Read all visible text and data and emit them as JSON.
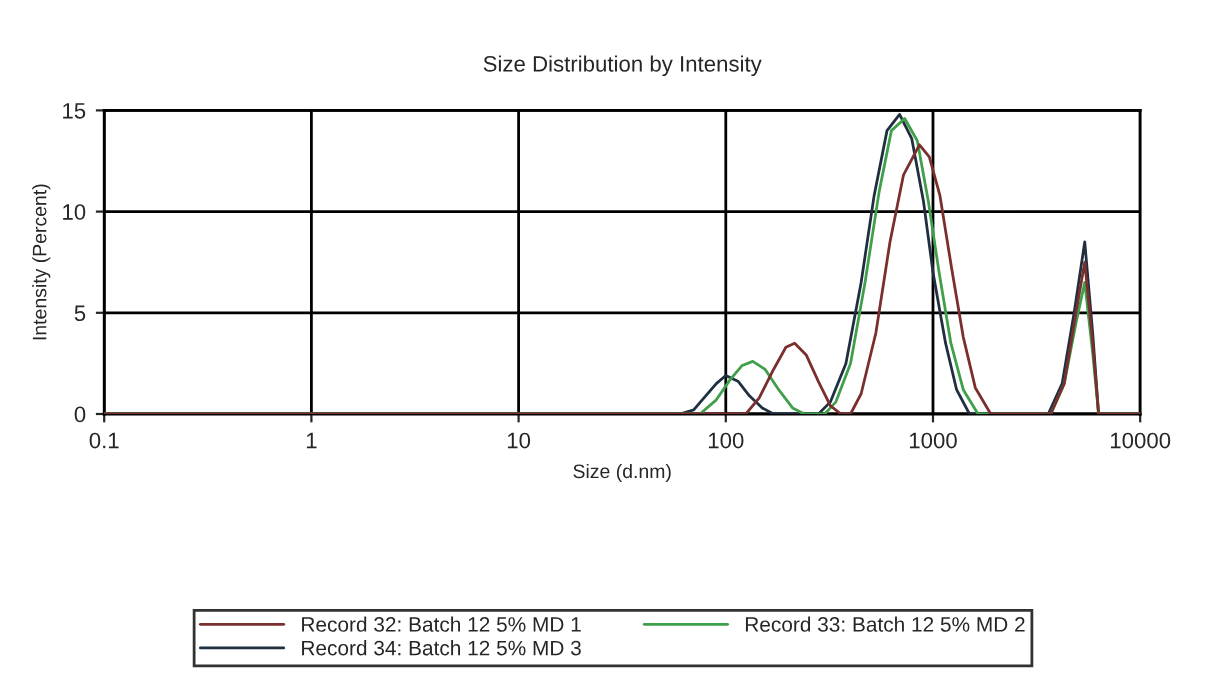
{
  "chart_data": {
    "type": "line",
    "title": "Size Distribution by Intensity",
    "xlabel": "Size (d.nm)",
    "ylabel": "Intensity (Percent)",
    "log": "x",
    "xlim": [
      0.1,
      10000
    ],
    "xticks": [
      {
        "value": 0.1,
        "label": "0.1"
      },
      1,
      10,
      100,
      1000,
      10000
    ],
    "ylim": [
      0,
      15
    ],
    "yticks": [
      0,
      5,
      10,
      15
    ],
    "grid": true,
    "legend": "bottom",
    "marker": "none",
    "line_style": "solid",
    "series": [
      {
        "name": "Record 32: Batch 12 5% MD 1",
        "color": "#7a2e2e",
        "x": [
          0.1,
          125,
          145,
          170,
          195,
          215,
          245,
          280,
          320,
          360,
          400,
          450,
          530,
          620,
          720,
          860,
          960,
          1080,
          1230,
          1400,
          1600,
          1900,
          3700,
          4300,
          4900,
          5400,
          5900,
          6300,
          10000
        ],
        "values": [
          0,
          0,
          0.8,
          2.2,
          3.3,
          3.5,
          2.9,
          1.6,
          0.4,
          0,
          0,
          1.0,
          4.0,
          8.5,
          11.8,
          13.3,
          12.7,
          10.8,
          7.2,
          3.8,
          1.3,
          0,
          0,
          1.5,
          5,
          7.5,
          3.5,
          0,
          0
        ]
      },
      {
        "name": "Record 33: Batch 12 5% MD 2",
        "color": "#3f9f4a",
        "x": [
          0.1,
          75,
          90,
          105,
          120,
          135,
          155,
          180,
          210,
          240,
          300,
          340,
          400,
          470,
          550,
          630,
          730,
          840,
          950,
          1070,
          1220,
          1400,
          1650,
          3700,
          4300,
          4900,
          5400,
          5900,
          6300,
          10000
        ],
        "values": [
          0,
          0,
          0.7,
          1.7,
          2.4,
          2.6,
          2.2,
          1.2,
          0.3,
          0,
          0,
          0.6,
          2.5,
          6.5,
          11,
          14,
          14.6,
          13.5,
          10.5,
          7,
          3.5,
          1.2,
          0,
          0,
          1.5,
          4.5,
          6.5,
          3,
          0,
          0
        ]
      },
      {
        "name": "Record 34: Batch 12 5% MD 3",
        "color": "#1f2f3f",
        "x": [
          0.1,
          60,
          70,
          80,
          90,
          100,
          115,
          130,
          150,
          170,
          280,
          320,
          380,
          450,
          520,
          600,
          690,
          790,
          900,
          1000,
          1150,
          1300,
          1500,
          3600,
          4200,
          4800,
          5400,
          5900,
          6300,
          10000
        ],
        "values": [
          0,
          0,
          0.2,
          0.9,
          1.5,
          1.9,
          1.6,
          0.9,
          0.3,
          0,
          0,
          0.6,
          2.5,
          6.5,
          10.8,
          14.0,
          14.8,
          13.6,
          10.5,
          7.0,
          3.5,
          1.2,
          0,
          0,
          1.5,
          5.0,
          8.5,
          4,
          0,
          0
        ]
      }
    ]
  }
}
